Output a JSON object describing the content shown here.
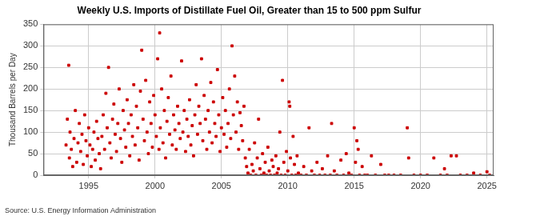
{
  "chart_data": {
    "type": "scatter",
    "title": "Weekly U.S. Imports of Distillate Fuel Oil, Greater than 15 to 500 ppm Sulfur",
    "y_label": "Thousand Barrels per Day",
    "source": "Source: U.S. Energy Information Administration",
    "color": "#cc0000",
    "marker": "square",
    "grid": true,
    "xlim": [
      1991.6,
      2025.5
    ],
    "xticks": [
      1995,
      2000,
      2005,
      2010,
      2015,
      2020,
      2025
    ],
    "ylim": [
      0,
      350
    ],
    "yticks": [
      0,
      50,
      100,
      150,
      200,
      250,
      300,
      350
    ],
    "x": [
      1993.3,
      1993.4,
      1993.5,
      1993.55,
      1993.6,
      1993.7,
      1993.8,
      1993.9,
      1994.0,
      1994.1,
      1994.2,
      1994.3,
      1994.4,
      1994.5,
      1994.6,
      1994.7,
      1994.8,
      1994.9,
      1995.0,
      1995.1,
      1995.2,
      1995.3,
      1995.4,
      1995.5,
      1995.6,
      1995.7,
      1995.8,
      1995.9,
      1996.0,
      1996.1,
      1996.2,
      1996.3,
      1996.4,
      1996.5,
      1996.6,
      1996.7,
      1996.8,
      1996.9,
      1997.0,
      1997.1,
      1997.2,
      1997.3,
      1997.4,
      1997.5,
      1997.6,
      1997.7,
      1997.8,
      1997.9,
      1998.0,
      1998.1,
      1998.2,
      1998.3,
      1998.4,
      1998.5,
      1998.6,
      1998.7,
      1998.8,
      1998.9,
      1999.0,
      1999.1,
      1999.2,
      1999.3,
      1999.4,
      1999.5,
      1999.6,
      1999.7,
      1999.8,
      1999.9,
      2000.0,
      2000.1,
      2000.2,
      2000.3,
      2000.35,
      2000.4,
      2000.5,
      2000.6,
      2000.7,
      2000.8,
      2000.9,
      2001.0,
      2001.1,
      2001.2,
      2001.3,
      2001.4,
      2001.5,
      2001.6,
      2001.7,
      2001.8,
      2001.9,
      2002.0,
      2002.1,
      2002.2,
      2002.3,
      2002.4,
      2002.5,
      2002.6,
      2002.7,
      2002.8,
      2002.9,
      2003.0,
      2003.1,
      2003.2,
      2003.3,
      2003.4,
      2003.5,
      2003.6,
      2003.7,
      2003.8,
      2003.9,
      2004.0,
      2004.1,
      2004.2,
      2004.3,
      2004.4,
      2004.5,
      2004.6,
      2004.7,
      2004.8,
      2004.9,
      2005.0,
      2005.1,
      2005.2,
      2005.3,
      2005.4,
      2005.5,
      2005.6,
      2005.7,
      2005.8,
      2005.9,
      2006.0,
      2006.1,
      2006.2,
      2006.3,
      2006.4,
      2006.5,
      2006.6,
      2006.7,
      2006.8,
      2006.9,
      2007.0,
      2007.1,
      2007.2,
      2007.3,
      2007.4,
      2007.5,
      2007.6,
      2007.7,
      2007.8,
      2007.9,
      2008.0,
      2008.1,
      2008.2,
      2008.3,
      2008.4,
      2008.5,
      2008.6,
      2008.7,
      2008.8,
      2008.9,
      2009.0,
      2009.1,
      2009.2,
      2009.3,
      2009.4,
      2009.5,
      2009.6,
      2009.7,
      2009.8,
      2009.9,
      2010.0,
      2010.1,
      2010.15,
      2010.2,
      2010.3,
      2010.4,
      2010.5,
      2010.6,
      2010.7,
      2010.8,
      2011.0,
      2011.2,
      2011.4,
      2011.6,
      2011.8,
      2012.0,
      2012.2,
      2012.4,
      2012.6,
      2012.8,
      2013.0,
      2013.2,
      2013.3,
      2013.5,
      2013.7,
      2014.0,
      2014.2,
      2014.4,
      2014.6,
      2014.8,
      2015.0,
      2015.1,
      2015.2,
      2015.3,
      2015.4,
      2015.6,
      2015.8,
      2016.0,
      2016.3,
      2016.6,
      2017.0,
      2017.3,
      2017.6,
      2018.0,
      2018.5,
      2019.0,
      2019.1,
      2019.5,
      2020.0,
      2020.5,
      2021.0,
      2021.5,
      2021.8,
      2022.0,
      2022.3,
      2022.7,
      2023.0,
      2023.5,
      2024.0,
      2024.5,
      2025.0,
      2025.2
    ],
    "values": [
      70,
      130,
      255,
      40,
      100,
      60,
      20,
      85,
      150,
      30,
      75,
      120,
      55,
      95,
      25,
      140,
      80,
      45,
      110,
      70,
      20,
      60,
      100,
      35,
      125,
      85,
      50,
      15,
      90,
      140,
      60,
      190,
      110,
      250,
      75,
      40,
      130,
      165,
      95,
      55,
      120,
      200,
      85,
      30,
      150,
      105,
      65,
      175,
      120,
      45,
      140,
      90,
      210,
      70,
      160,
      110,
      35,
      195,
      290,
      130,
      80,
      220,
      100,
      50,
      170,
      120,
      65,
      185,
      140,
      90,
      270,
      60,
      330,
      110,
      200,
      75,
      150,
      40,
      125,
      180,
      95,
      230,
      70,
      140,
      105,
      60,
      160,
      120,
      85,
      265,
      100,
      150,
      55,
      130,
      90,
      175,
      70,
      115,
      45,
      140,
      210,
      95,
      160,
      120,
      270,
      80,
      185,
      130,
      60,
      150,
      100,
      215,
      75,
      170,
      120,
      90,
      245,
      140,
      55,
      110,
      180,
      95,
      150,
      65,
      120,
      200,
      85,
      300,
      140,
      230,
      100,
      170,
      60,
      145,
      115,
      80,
      160,
      40,
      20,
      5,
      60,
      0,
      25,
      10,
      75,
      0,
      40,
      130,
      15,
      0,
      50,
      5,
      30,
      0,
      65,
      10,
      0,
      35,
      20,
      0,
      45,
      5,
      15,
      100,
      0,
      220,
      30,
      0,
      55,
      10,
      170,
      160,
      40,
      0,
      90,
      25,
      0,
      45,
      5,
      0,
      20,
      0,
      110,
      10,
      0,
      30,
      0,
      15,
      0,
      45,
      0,
      120,
      10,
      0,
      35,
      0,
      50,
      5,
      0,
      110,
      30,
      80,
      60,
      0,
      20,
      0,
      0,
      45,
      0,
      25,
      0,
      0,
      0,
      0,
      110,
      40,
      0,
      0,
      0,
      40,
      0,
      15,
      0,
      45,
      45,
      0,
      0,
      5,
      0,
      8,
      0
    ]
  }
}
